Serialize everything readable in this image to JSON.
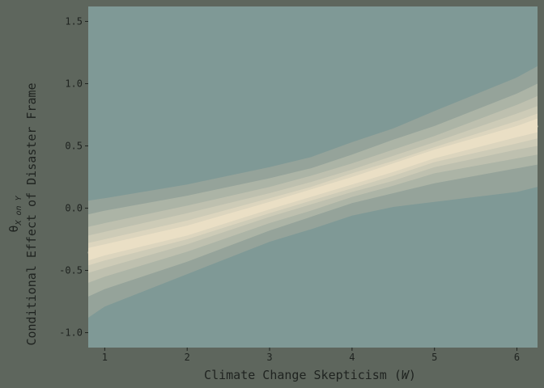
{
  "chart_data": {
    "type": "area",
    "title": "",
    "xlabel": "Climate Change Skepticism (W)",
    "xlabel_parts": {
      "text": "Climate Change Skepticism (",
      "var": "W",
      "close": ")"
    },
    "ylabel": "Conditional Effect of Disaster Frame",
    "ylabel_math": {
      "symbol": "θ",
      "subscript": "X on Y"
    },
    "xlim": [
      0.8,
      6.25
    ],
    "ylim": [
      -1.12,
      1.62
    ],
    "x_ticks": [
      "1",
      "2",
      "3",
      "4",
      "5",
      "6"
    ],
    "y_ticks": [
      "-1.0",
      "-0.5",
      "0.0",
      "0.5",
      "1.0",
      "1.5"
    ],
    "grid": false,
    "colors": {
      "background": "#5e665d",
      "panel": "#7f9996",
      "band_outer": "#95a39a",
      "band_inner": "#eadfc5"
    },
    "x": [
      0.8,
      1,
      2,
      3,
      3.5,
      4,
      4.5,
      5,
      6,
      6.25
    ],
    "estimate": [
      -0.37,
      -0.34,
      -0.18,
      0.02,
      0.12,
      0.23,
      0.33,
      0.44,
      0.62,
      0.67
    ],
    "series": [
      {
        "lower": [
          -0.88,
          -0.79,
          -0.53,
          -0.27,
          -0.17,
          -0.06,
          0.01,
          0.05,
          0.13,
          0.17
        ],
        "upper": [
          0.06,
          0.08,
          0.19,
          0.33,
          0.41,
          0.53,
          0.64,
          0.78,
          1.05,
          1.14
        ]
      },
      {
        "lower": [
          -0.71,
          -0.65,
          -0.43,
          -0.18,
          -0.07,
          0.04,
          0.12,
          0.2,
          0.32,
          0.35
        ],
        "upper": [
          -0.05,
          -0.02,
          0.1,
          0.24,
          0.32,
          0.43,
          0.55,
          0.66,
          0.92,
          1.0
        ]
      },
      {
        "lower": [
          -0.6,
          -0.55,
          -0.35,
          -0.12,
          -0.02,
          0.09,
          0.18,
          0.28,
          0.4,
          0.43
        ],
        "upper": [
          -0.15,
          -0.12,
          0.02,
          0.17,
          0.26,
          0.36,
          0.47,
          0.58,
          0.83,
          0.9
        ]
      },
      {
        "lower": [
          -0.52,
          -0.48,
          -0.29,
          -0.07,
          0.03,
          0.13,
          0.22,
          0.33,
          0.47,
          0.5
        ],
        "upper": [
          -0.22,
          -0.19,
          -0.04,
          0.12,
          0.21,
          0.31,
          0.42,
          0.53,
          0.76,
          0.82
        ]
      },
      {
        "lower": [
          -0.46,
          -0.42,
          -0.25,
          -0.04,
          0.06,
          0.16,
          0.26,
          0.37,
          0.52,
          0.56
        ],
        "upper": [
          -0.28,
          -0.25,
          -0.1,
          0.08,
          0.17,
          0.28,
          0.38,
          0.49,
          0.7,
          0.76
        ]
      },
      {
        "lower": [
          -0.42,
          -0.38,
          -0.22,
          -0.01,
          0.09,
          0.19,
          0.29,
          0.4,
          0.57,
          0.61
        ],
        "upper": [
          -0.32,
          -0.29,
          -0.14,
          0.05,
          0.15,
          0.25,
          0.36,
          0.47,
          0.66,
          0.72
        ]
      }
    ]
  }
}
